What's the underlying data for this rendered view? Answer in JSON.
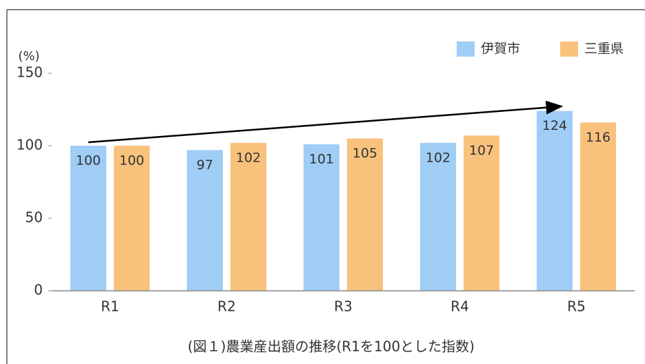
{
  "chart_data": {
    "type": "bar",
    "ylabel": "(%)",
    "caption": "(図１)農業産出額の推移(R1を100とした指数)",
    "categories": [
      "R1",
      "R2",
      "R3",
      "R4",
      "R5"
    ],
    "series": [
      {
        "name": "伊賀市",
        "color": "#9fcdf6",
        "values": [
          100,
          97,
          101,
          102,
          124
        ]
      },
      {
        "name": "三重県",
        "color": "#f9c27c",
        "values": [
          100,
          102,
          105,
          107,
          116
        ]
      }
    ],
    "ylim": [
      0,
      150
    ],
    "yticks": [
      0,
      50,
      100,
      150
    ],
    "grid": false,
    "legend": "top-right"
  }
}
